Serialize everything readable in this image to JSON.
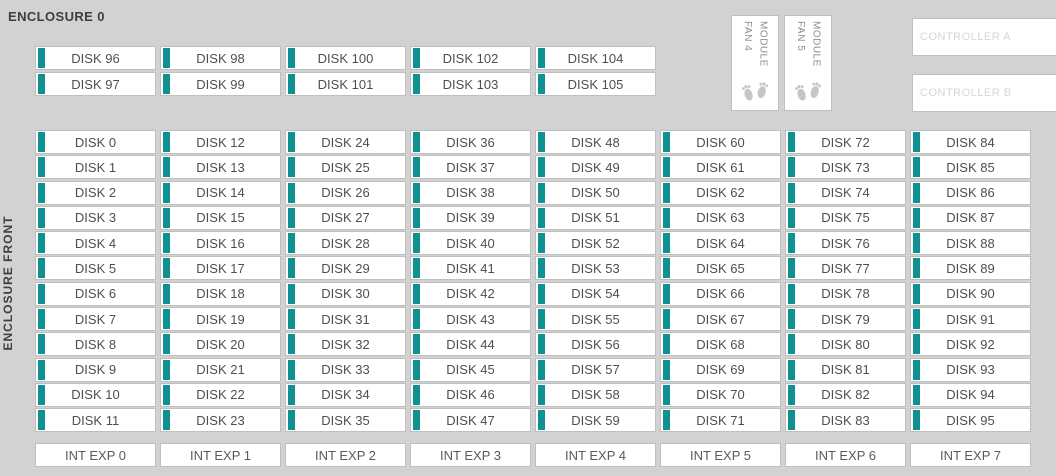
{
  "title": "ENCLOSURE 0",
  "side_label": "ENCLOSURE FRONT",
  "colors": {
    "background": "#d2d2d2",
    "slot_bg": "#ffffff",
    "slot_border": "#bfbfbf",
    "teal_bar": "#0f9191",
    "label_text": "#4f4f4f",
    "exp_text": "#5a5a5a",
    "title_text": "#3e3e3e",
    "fan_text": "#8c8c8c",
    "controller_text": "#d6d6d6",
    "footprint": "#c6c6c6"
  },
  "top_grid": {
    "rows": [
      [
        "DISK 96",
        "DISK 98",
        "DISK 100",
        "DISK 102",
        "DISK 104"
      ],
      [
        "DISK 97",
        "DISK 99",
        "DISK 101",
        "DISK 103",
        "DISK 105"
      ]
    ]
  },
  "fans": [
    {
      "label": "FAN 4 MODULE"
    },
    {
      "label": "FAN 5 MODULE"
    }
  ],
  "controllers": [
    {
      "label": "CONTROLLER A"
    },
    {
      "label": "CONTROLLER B"
    }
  ],
  "main_grid": {
    "columns": [
      [
        "DISK 0",
        "DISK 1",
        "DISK 2",
        "DISK 3",
        "DISK 4",
        "DISK 5",
        "DISK 6",
        "DISK 7",
        "DISK 8",
        "DISK 9",
        "DISK 10",
        "DISK 11"
      ],
      [
        "DISK 12",
        "DISK 13",
        "DISK 14",
        "DISK 15",
        "DISK 16",
        "DISK 17",
        "DISK 18",
        "DISK 19",
        "DISK 20",
        "DISK 21",
        "DISK 22",
        "DISK 23"
      ],
      [
        "DISK 24",
        "DISK 25",
        "DISK 26",
        "DISK 27",
        "DISK 28",
        "DISK 29",
        "DISK 30",
        "DISK 31",
        "DISK 32",
        "DISK 33",
        "DISK 34",
        "DISK 35"
      ],
      [
        "DISK 36",
        "DISK 37",
        "DISK 38",
        "DISK 39",
        "DISK 40",
        "DISK 41",
        "DISK 42",
        "DISK 43",
        "DISK 44",
        "DISK 45",
        "DISK 46",
        "DISK 47"
      ],
      [
        "DISK 48",
        "DISK 49",
        "DISK 50",
        "DISK 51",
        "DISK 52",
        "DISK 53",
        "DISK 54",
        "DISK 55",
        "DISK 56",
        "DISK 57",
        "DISK 58",
        "DISK 59"
      ],
      [
        "DISK 60",
        "DISK 61",
        "DISK 62",
        "DISK 63",
        "DISK 64",
        "DISK 65",
        "DISK 66",
        "DISK 67",
        "DISK 68",
        "DISK 69",
        "DISK 70",
        "DISK 71"
      ],
      [
        "DISK 72",
        "DISK 73",
        "DISK 74",
        "DISK 75",
        "DISK 76",
        "DISK 77",
        "DISK 78",
        "DISK 79",
        "DISK 80",
        "DISK 81",
        "DISK 82",
        "DISK 83"
      ],
      [
        "DISK 84",
        "DISK 85",
        "DISK 86",
        "DISK 87",
        "DISK 88",
        "DISK 89",
        "DISK 90",
        "DISK 91",
        "DISK 92",
        "DISK 93",
        "DISK 94",
        "DISK 95"
      ]
    ]
  },
  "expanders": [
    "INT EXP 0",
    "INT EXP 1",
    "INT EXP 2",
    "INT EXP 3",
    "INT EXP 4",
    "INT EXP 5",
    "INT EXP 6",
    "INT EXP 7"
  ]
}
